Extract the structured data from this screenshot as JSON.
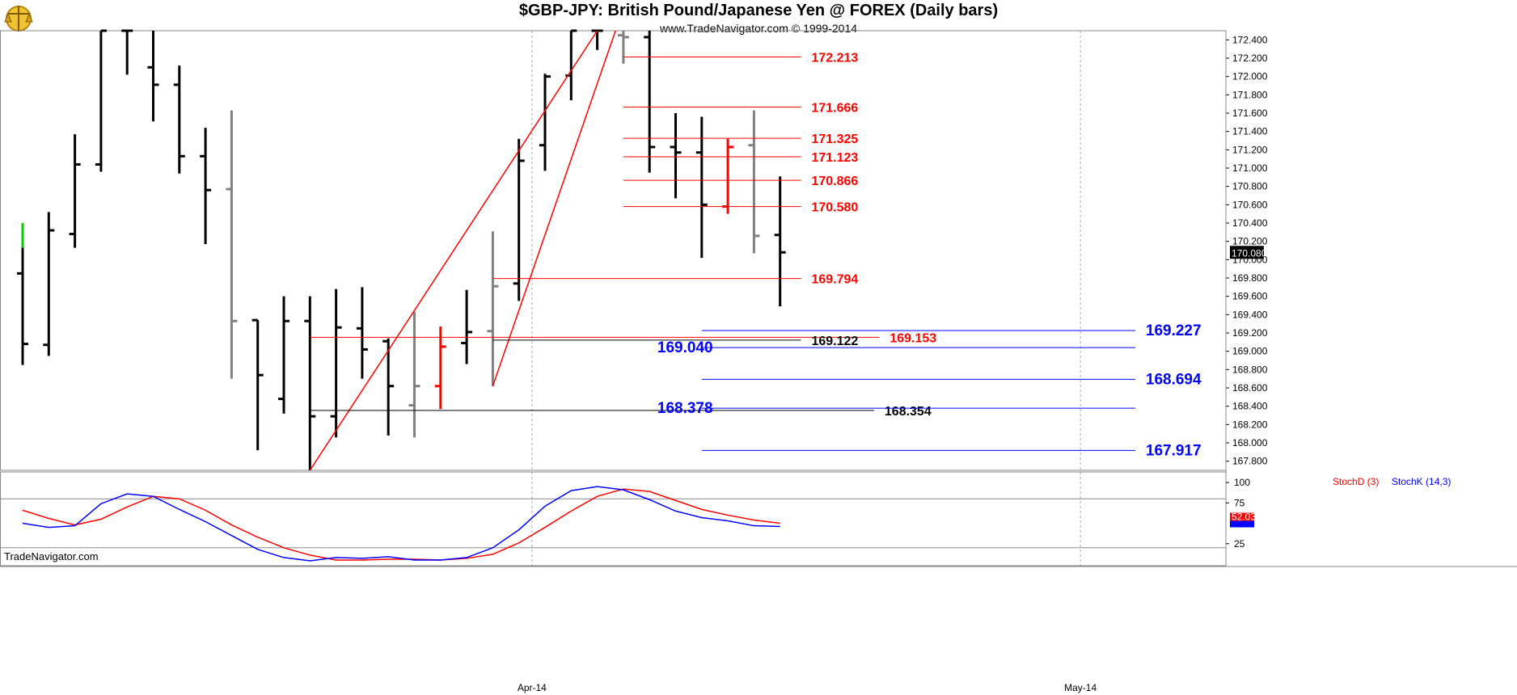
{
  "header": {
    "title": "$GBP-JPY:  British Pound/Japanese Yen @ FOREX  (Daily bars)",
    "subtitle": "www.TradeNavigator.com © 1999-2014",
    "watermark": "TradeNavigator.com"
  },
  "colors": {
    "up": "#000000",
    "gray": "#808080",
    "red": "#ff0000",
    "green": "#00cc00",
    "blue": "#0000ff",
    "gridline": "#aaaaaa"
  },
  "chart_data": [
    {
      "type": "ohlc",
      "title": "$GBP-JPY:  British Pound/Japanese Yen @ FOREX  (Daily bars)",
      "ylim": [
        167.7,
        172.5
      ],
      "yticks": [
        "172.400",
        "172.200",
        "172.000",
        "171.800",
        "171.600",
        "171.400",
        "171.200",
        "171.000",
        "170.800",
        "170.600",
        "170.400",
        "170.200",
        "170.000",
        "169.800",
        "169.600",
        "169.400",
        "169.200",
        "169.000",
        "168.800",
        "168.600",
        "168.400",
        "168.200",
        "168.000",
        "167.800"
      ],
      "xticks": [
        {
          "label": "Apr-14",
          "index": 19.5
        },
        {
          "label": "May-14",
          "index": 40.5
        }
      ],
      "last_price_label": "170.080",
      "last_price": 170.08,
      "bars": [
        {
          "o": 169.85,
          "h": 170.4,
          "l": 168.85,
          "c": 169.08,
          "color": "green_black"
        },
        {
          "o": 169.07,
          "h": 170.52,
          "l": 168.95,
          "c": 170.32,
          "color": "black"
        },
        {
          "o": 170.28,
          "h": 171.37,
          "l": 170.13,
          "c": 171.04,
          "color": "black"
        },
        {
          "o": 171.04,
          "h": 172.5,
          "l": 170.96,
          "c": 172.5,
          "color": "black"
        },
        {
          "o": 172.5,
          "h": 172.5,
          "l": 172.02,
          "c": 172.5,
          "color": "black"
        },
        {
          "o": 172.1,
          "h": 172.5,
          "l": 171.51,
          "c": 171.91,
          "color": "black"
        },
        {
          "o": 171.91,
          "h": 172.12,
          "l": 170.94,
          "c": 171.13,
          "color": "black"
        },
        {
          "o": 171.13,
          "h": 171.44,
          "l": 170.17,
          "c": 170.76,
          "color": "black"
        },
        {
          "o": 170.77,
          "h": 171.63,
          "l": 168.7,
          "c": 169.33,
          "color": "gray"
        },
        {
          "o": 169.34,
          "h": 169.34,
          "l": 167.92,
          "c": 168.74,
          "color": "black"
        },
        {
          "o": 168.48,
          "h": 169.6,
          "l": 168.32,
          "c": 169.33,
          "color": "black"
        },
        {
          "o": 169.33,
          "h": 169.6,
          "l": 167.7,
          "c": 168.29,
          "color": "black"
        },
        {
          "o": 168.29,
          "h": 169.68,
          "l": 168.06,
          "c": 169.26,
          "color": "black"
        },
        {
          "o": 169.25,
          "h": 169.7,
          "l": 168.7,
          "c": 169.02,
          "color": "black"
        },
        {
          "o": 169.11,
          "h": 169.14,
          "l": 168.08,
          "c": 168.62,
          "color": "black"
        },
        {
          "o": 168.41,
          "h": 169.43,
          "l": 168.06,
          "c": 168.62,
          "color": "gray"
        },
        {
          "o": 168.62,
          "h": 169.27,
          "l": 168.37,
          "c": 169.05,
          "color": "red"
        },
        {
          "o": 169.09,
          "h": 169.67,
          "l": 168.86,
          "c": 169.21,
          "color": "black"
        },
        {
          "o": 169.22,
          "h": 170.31,
          "l": 168.62,
          "c": 169.71,
          "color": "gray"
        },
        {
          "o": 169.74,
          "h": 171.32,
          "l": 169.55,
          "c": 171.08,
          "color": "black"
        },
        {
          "o": 171.25,
          "h": 172.03,
          "l": 170.97,
          "c": 172.0,
          "color": "black"
        },
        {
          "o": 172.01,
          "h": 172.5,
          "l": 171.74,
          "c": 172.5,
          "color": "black"
        },
        {
          "o": 172.5,
          "h": 172.5,
          "l": 172.29,
          "c": 172.5,
          "color": "black"
        },
        {
          "o": 172.45,
          "h": 172.5,
          "l": 172.14,
          "c": 172.43,
          "color": "gray"
        },
        {
          "o": 172.43,
          "h": 172.5,
          "l": 170.95,
          "c": 171.23,
          "color": "black"
        },
        {
          "o": 171.23,
          "h": 171.6,
          "l": 170.67,
          "c": 171.17,
          "color": "black"
        },
        {
          "o": 171.17,
          "h": 171.56,
          "l": 170.02,
          "c": 170.6,
          "color": "black"
        },
        {
          "o": 170.58,
          "h": 171.32,
          "l": 170.5,
          "c": 171.23,
          "color": "red"
        },
        {
          "o": 171.25,
          "h": 171.63,
          "l": 170.07,
          "c": 170.26,
          "color": "gray"
        },
        {
          "o": 170.27,
          "h": 170.91,
          "l": 169.49,
          "c": 170.08,
          "color": "black"
        }
      ],
      "trendlines": [
        {
          "from": [
            11,
            167.7
          ],
          "to": [
            22,
            172.5
          ],
          "color": "red"
        },
        {
          "from": [
            18,
            168.62
          ],
          "to": [
            22.7,
            172.5
          ],
          "color": "red"
        }
      ],
      "levels": [
        {
          "label": "172.213",
          "value": 172.213,
          "x1": 23,
          "x2": 29.8,
          "label_at": 30.2,
          "color": "red"
        },
        {
          "label": "171.666",
          "value": 171.666,
          "x1": 23,
          "x2": 29.8,
          "label_at": 30.2,
          "color": "red"
        },
        {
          "label": "171.325",
          "value": 171.325,
          "x1": 23,
          "x2": 29.8,
          "label_at": 30.2,
          "color": "red"
        },
        {
          "label": "171.123",
          "value": 171.123,
          "x1": 23,
          "x2": 29.8,
          "label_at": 30.2,
          "color": "red"
        },
        {
          "label": "170.866",
          "value": 170.866,
          "x1": 23,
          "x2": 29.8,
          "label_at": 30.2,
          "color": "red"
        },
        {
          "label": "170.580",
          "value": 170.58,
          "x1": 23,
          "x2": 29.8,
          "label_at": 30.2,
          "color": "red"
        },
        {
          "label": "169.794",
          "value": 169.794,
          "x1": 18,
          "x2": 29.8,
          "label_at": 30.2,
          "color": "red"
        },
        {
          "label": "169.153",
          "value": 169.153,
          "x1": 11,
          "x2": 32.8,
          "label_at": 33.2,
          "color": "red"
        },
        {
          "label": "169.122",
          "value": 169.122,
          "x1": 18,
          "x2": 29.8,
          "label_at": 30.2,
          "color": "black"
        },
        {
          "label": "168.354",
          "value": 168.354,
          "x1": 11,
          "x2": 32.6,
          "label_at": 33.0,
          "color": "black"
        },
        {
          "label": "169.227",
          "value": 169.227,
          "x1": 26,
          "x2": 42.6,
          "label_at": 43.0,
          "color": "blue"
        },
        {
          "label": "169.040",
          "value": 169.04,
          "x1": 26,
          "x2": 42.6,
          "label_at": 24.3,
          "color": "blue"
        },
        {
          "label": "168.694",
          "value": 168.694,
          "x1": 26,
          "x2": 42.6,
          "label_at": 43.0,
          "color": "blue"
        },
        {
          "label": "168.378",
          "value": 168.378,
          "x1": 26,
          "x2": 42.6,
          "label_at": 24.3,
          "color": "blue"
        },
        {
          "label": "167.917",
          "value": 167.917,
          "x1": 26,
          "x2": 42.6,
          "label_at": 43.0,
          "color": "blue"
        }
      ]
    },
    {
      "type": "line",
      "title": "",
      "ylim": [
        0,
        105
      ],
      "yticks": [
        "100",
        "75",
        "25"
      ],
      "legend": [
        {
          "name": "StochD (3)",
          "color": "red"
        },
        {
          "name": "StochK (14,3)",
          "color": "blue"
        }
      ],
      "last_value_label": "52.03",
      "series": [
        {
          "name": "StochD (3)",
          "color": "red",
          "values": [
            66,
            56,
            48,
            55,
            70,
            83,
            80,
            66,
            48,
            33,
            20,
            11,
            5,
            5,
            6,
            6,
            5,
            7,
            12,
            26,
            45,
            65,
            83,
            92,
            89,
            78,
            67,
            60,
            54,
            50
          ]
        },
        {
          "name": "StochK (14,3)",
          "color": "blue",
          "values": [
            50,
            45,
            47,
            74,
            86,
            83,
            67,
            52,
            35,
            18,
            8,
            4,
            8,
            7,
            9,
            5,
            5,
            8,
            20,
            42,
            71,
            90,
            95,
            91,
            79,
            65,
            57,
            53,
            47,
            46
          ]
        }
      ]
    }
  ]
}
